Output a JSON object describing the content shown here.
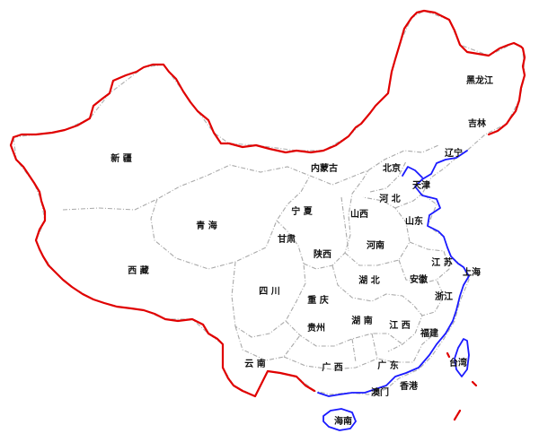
{
  "map": {
    "colors": {
      "land_border": "#e00000",
      "coastline": "#1a1aff",
      "province_border": "#aaaaaa",
      "label": "#111111",
      "background": "#ffffff"
    },
    "labels": {
      "heilongjiang": "黑龙江",
      "jilin": "吉林",
      "liaoning": "辽宁",
      "neimenggu": "内蒙古",
      "xinjiang": "新 疆",
      "beijing": "北京",
      "tianjin": "天津",
      "hebei": "河 北",
      "shanxi": "山西",
      "shandong": "山东",
      "ningxia": "宁 夏",
      "qinghai": "青 海",
      "gansu": "甘肃",
      "shaanxi": "陕西",
      "henan": "河南",
      "xizang": "西 藏",
      "jiangsu": "江 苏",
      "shanghai": "上海",
      "anhui": "安徽",
      "hubei": "湖 北",
      "sichuan": "四 川",
      "chongqing": "重 庆",
      "zhejiang": "浙江",
      "guizhou": "贵州",
      "hunan": "湖 南",
      "jiangxi": "江 西",
      "fujian": "福建",
      "taiwan": "台湾",
      "yunnan": "云 南",
      "guangxi": "广 西",
      "guangdong": "广 东",
      "xianggang": "香港",
      "aomen": "澳门",
      "hainan": "海南"
    }
  }
}
